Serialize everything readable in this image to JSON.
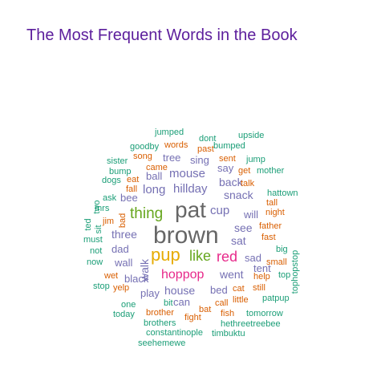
{
  "chart_data": {
    "type": "wordcloud",
    "title": "The Most Frequent Words in the Book",
    "colors": {
      "gray": "#666666",
      "orange": "#d95f02",
      "purple": "#7570b3",
      "teal": "#1b9e77",
      "green": "#66a61e",
      "pink": "#e7298a",
      "gold": "#e6ab02"
    },
    "words": [
      {
        "text": "brown",
        "color": "gray"
      },
      {
        "text": "pat",
        "color": "gray"
      },
      {
        "text": "pup",
        "color": "gold"
      },
      {
        "text": "thing",
        "color": "green"
      },
      {
        "text": "like",
        "color": "green"
      },
      {
        "text": "red",
        "color": "pink"
      },
      {
        "text": "hoppop",
        "color": "pink"
      },
      {
        "text": "mouse",
        "color": "purple"
      },
      {
        "text": "long",
        "color": "purple"
      },
      {
        "text": "hillday",
        "color": "purple"
      },
      {
        "text": "cup",
        "color": "purple"
      },
      {
        "text": "snack",
        "color": "purple"
      },
      {
        "text": "back",
        "color": "purple"
      },
      {
        "text": "will",
        "color": "purple"
      },
      {
        "text": "see",
        "color": "purple"
      },
      {
        "text": "sat",
        "color": "purple"
      },
      {
        "text": "three",
        "color": "purple"
      },
      {
        "text": "walk",
        "color": "purple"
      },
      {
        "text": "dad",
        "color": "purple"
      },
      {
        "text": "wall",
        "color": "purple"
      },
      {
        "text": "went",
        "color": "purple"
      },
      {
        "text": "sad",
        "color": "purple"
      },
      {
        "text": "house",
        "color": "purple"
      },
      {
        "text": "black",
        "color": "purple"
      },
      {
        "text": "play",
        "color": "purple"
      },
      {
        "text": "bed",
        "color": "purple"
      },
      {
        "text": "tent",
        "color": "purple"
      },
      {
        "text": "can",
        "color": "purple"
      },
      {
        "text": "say",
        "color": "purple"
      },
      {
        "text": "sing",
        "color": "purple"
      },
      {
        "text": "tree",
        "color": "purple"
      },
      {
        "text": "ball",
        "color": "purple"
      },
      {
        "text": "bee",
        "color": "purple"
      },
      {
        "text": "jumped",
        "color": "teal"
      },
      {
        "text": "dont",
        "color": "teal"
      },
      {
        "text": "upside",
        "color": "teal"
      },
      {
        "text": "goodby",
        "color": "teal"
      },
      {
        "text": "words",
        "color": "orange"
      },
      {
        "text": "past",
        "color": "orange"
      },
      {
        "text": "bumped",
        "color": "teal"
      },
      {
        "text": "sister",
        "color": "teal"
      },
      {
        "text": "song",
        "color": "orange"
      },
      {
        "text": "sent",
        "color": "orange"
      },
      {
        "text": "jump",
        "color": "teal"
      },
      {
        "text": "bump",
        "color": "teal"
      },
      {
        "text": "came",
        "color": "orange"
      },
      {
        "text": "get",
        "color": "orange"
      },
      {
        "text": "mother",
        "color": "teal"
      },
      {
        "text": "dogs",
        "color": "teal"
      },
      {
        "text": "eat",
        "color": "orange"
      },
      {
        "text": "talk",
        "color": "orange"
      },
      {
        "text": "fall",
        "color": "orange"
      },
      {
        "text": "two",
        "color": "teal"
      },
      {
        "text": "hattown",
        "color": "teal"
      },
      {
        "text": "ask",
        "color": "teal"
      },
      {
        "text": "tall",
        "color": "orange"
      },
      {
        "text": "mrs",
        "color": "teal"
      },
      {
        "text": "bad",
        "color": "orange"
      },
      {
        "text": "night",
        "color": "orange"
      },
      {
        "text": "ted",
        "color": "teal"
      },
      {
        "text": "sit",
        "color": "teal"
      },
      {
        "text": "jim",
        "color": "orange"
      },
      {
        "text": "father",
        "color": "orange"
      },
      {
        "text": "tophopstop",
        "color": "teal"
      },
      {
        "text": "fast",
        "color": "orange"
      },
      {
        "text": "must",
        "color": "teal"
      },
      {
        "text": "big",
        "color": "teal"
      },
      {
        "text": "not",
        "color": "teal"
      },
      {
        "text": "small",
        "color": "orange"
      },
      {
        "text": "now",
        "color": "teal"
      },
      {
        "text": "wet",
        "color": "orange"
      },
      {
        "text": "help",
        "color": "orange"
      },
      {
        "text": "top",
        "color": "teal"
      },
      {
        "text": "stop",
        "color": "teal"
      },
      {
        "text": "yelp",
        "color": "orange"
      },
      {
        "text": "cat",
        "color": "orange"
      },
      {
        "text": "still",
        "color": "orange"
      },
      {
        "text": "one",
        "color": "teal"
      },
      {
        "text": "bit",
        "color": "teal"
      },
      {
        "text": "call",
        "color": "orange"
      },
      {
        "text": "little",
        "color": "orange"
      },
      {
        "text": "patpup",
        "color": "teal"
      },
      {
        "text": "bat",
        "color": "orange"
      },
      {
        "text": "today",
        "color": "teal"
      },
      {
        "text": "fight",
        "color": "orange"
      },
      {
        "text": "fish",
        "color": "orange"
      },
      {
        "text": "tomorrow",
        "color": "teal"
      },
      {
        "text": "brother",
        "color": "orange"
      },
      {
        "text": "brothers",
        "color": "teal"
      },
      {
        "text": "hethreetreebee",
        "color": "teal"
      },
      {
        "text": "constantinople",
        "color": "teal"
      },
      {
        "text": "timbuktu",
        "color": "teal"
      },
      {
        "text": "seehemewe",
        "color": "teal"
      }
    ]
  }
}
